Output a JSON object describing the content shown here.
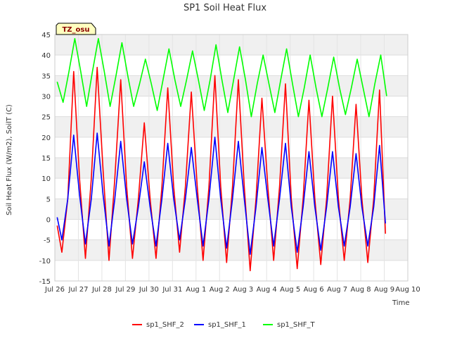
{
  "chart_data": {
    "type": "line",
    "title": "SP1 Soil Heat Flux",
    "xlabel": "Time",
    "ylabel": "Soil Heat Flux (W/m2), SoilT (C)",
    "badge": "TZ_osu",
    "xlim": [
      0,
      15
    ],
    "ylim": [
      -15,
      45
    ],
    "y_ticks": [
      -15,
      -10,
      -5,
      0,
      5,
      10,
      15,
      20,
      25,
      30,
      35,
      40,
      45
    ],
    "x_ticks": [
      {
        "x": 0,
        "label": "Jul 26"
      },
      {
        "x": 1,
        "label": "Jul 27"
      },
      {
        "x": 2,
        "label": "Jul 28"
      },
      {
        "x": 3,
        "label": "Jul 29"
      },
      {
        "x": 4,
        "label": "Jul 30"
      },
      {
        "x": 5,
        "label": "Jul 31"
      },
      {
        "x": 6,
        "label": "Aug 1"
      },
      {
        "x": 7,
        "label": "Aug 2"
      },
      {
        "x": 8,
        "label": "Aug 3"
      },
      {
        "x": 9,
        "label": "Aug 4"
      },
      {
        "x": 10,
        "label": "Aug 5"
      },
      {
        "x": 11,
        "label": "Aug 6"
      },
      {
        "x": 12,
        "label": "Aug 7"
      },
      {
        "x": 13,
        "label": "Aug 8"
      },
      {
        "x": 14,
        "label": "Aug 9"
      },
      {
        "x": 15,
        "label": "Aug 10"
      }
    ],
    "grid": true,
    "legend_position": "bottom",
    "series": [
      {
        "name": "sp1_SHF_2",
        "color": "#ff0000",
        "points": [
          [
            0.1,
            -1.5
          ],
          [
            0.3,
            -8.0
          ],
          [
            0.55,
            5.0
          ],
          [
            0.8,
            36.0
          ],
          [
            1.05,
            10.0
          ],
          [
            1.3,
            -9.5
          ],
          [
            1.55,
            10.0
          ],
          [
            1.8,
            37.0
          ],
          [
            2.05,
            12.0
          ],
          [
            2.3,
            -10.0
          ],
          [
            2.55,
            10.0
          ],
          [
            2.8,
            34.0
          ],
          [
            3.05,
            8.0
          ],
          [
            3.3,
            -9.5
          ],
          [
            3.55,
            5.0
          ],
          [
            3.8,
            23.5
          ],
          [
            4.05,
            5.0
          ],
          [
            4.3,
            -9.5
          ],
          [
            4.55,
            8.0
          ],
          [
            4.8,
            32.0
          ],
          [
            5.05,
            8.0
          ],
          [
            5.3,
            -8.0
          ],
          [
            5.55,
            8.0
          ],
          [
            5.8,
            31.0
          ],
          [
            6.05,
            8.0
          ],
          [
            6.3,
            -10.0
          ],
          [
            6.55,
            8.0
          ],
          [
            6.8,
            35.0
          ],
          [
            7.05,
            8.0
          ],
          [
            7.3,
            -10.5
          ],
          [
            7.55,
            8.0
          ],
          [
            7.8,
            34.0
          ],
          [
            8.05,
            8.0
          ],
          [
            8.3,
            -12.5
          ],
          [
            8.55,
            5.0
          ],
          [
            8.8,
            29.5
          ],
          [
            9.05,
            8.0
          ],
          [
            9.3,
            -10.0
          ],
          [
            9.55,
            8.0
          ],
          [
            9.8,
            33.0
          ],
          [
            10.05,
            5.0
          ],
          [
            10.3,
            -12.0
          ],
          [
            10.55,
            5.0
          ],
          [
            10.8,
            29.0
          ],
          [
            11.05,
            5.0
          ],
          [
            11.3,
            -11.0
          ],
          [
            11.55,
            5.0
          ],
          [
            11.8,
            30.0
          ],
          [
            12.05,
            5.0
          ],
          [
            12.3,
            -10.0
          ],
          [
            12.55,
            5.0
          ],
          [
            12.8,
            28.0
          ],
          [
            13.05,
            5.0
          ],
          [
            13.3,
            -10.5
          ],
          [
            13.55,
            5.0
          ],
          [
            13.8,
            31.5
          ],
          [
            14.05,
            -3.5
          ]
        ]
      },
      {
        "name": "sp1_SHF_1",
        "color": "#0000ff",
        "points": [
          [
            0.1,
            0.5
          ],
          [
            0.3,
            -5.0
          ],
          [
            0.55,
            5.0
          ],
          [
            0.8,
            20.5
          ],
          [
            1.05,
            6.0
          ],
          [
            1.3,
            -6.0
          ],
          [
            1.55,
            5.0
          ],
          [
            1.8,
            21.0
          ],
          [
            2.05,
            6.0
          ],
          [
            2.3,
            -6.5
          ],
          [
            2.55,
            5.0
          ],
          [
            2.8,
            19.0
          ],
          [
            3.05,
            5.0
          ],
          [
            3.3,
            -6.0
          ],
          [
            3.55,
            3.0
          ],
          [
            3.8,
            14.0
          ],
          [
            4.05,
            3.0
          ],
          [
            4.3,
            -6.5
          ],
          [
            4.55,
            5.0
          ],
          [
            4.8,
            18.5
          ],
          [
            5.05,
            5.0
          ],
          [
            5.3,
            -5.0
          ],
          [
            5.55,
            5.0
          ],
          [
            5.8,
            17.5
          ],
          [
            6.05,
            5.0
          ],
          [
            6.3,
            -6.5
          ],
          [
            6.55,
            5.0
          ],
          [
            6.8,
            20.0
          ],
          [
            7.05,
            5.0
          ],
          [
            7.3,
            -7.0
          ],
          [
            7.55,
            5.0
          ],
          [
            7.8,
            19.0
          ],
          [
            8.05,
            5.0
          ],
          [
            8.3,
            -8.5
          ],
          [
            8.55,
            3.0
          ],
          [
            8.8,
            17.5
          ],
          [
            9.05,
            5.0
          ],
          [
            9.3,
            -6.5
          ],
          [
            9.55,
            5.0
          ],
          [
            9.8,
            18.5
          ],
          [
            10.05,
            3.0
          ],
          [
            10.3,
            -8.0
          ],
          [
            10.55,
            3.0
          ],
          [
            10.8,
            16.5
          ],
          [
            11.05,
            3.0
          ],
          [
            11.3,
            -7.5
          ],
          [
            11.55,
            3.0
          ],
          [
            11.8,
            16.5
          ],
          [
            12.05,
            3.0
          ],
          [
            12.3,
            -6.5
          ],
          [
            12.55,
            3.0
          ],
          [
            12.8,
            16.0
          ],
          [
            13.05,
            3.0
          ],
          [
            13.3,
            -6.5
          ],
          [
            13.55,
            3.0
          ],
          [
            13.8,
            18.0
          ],
          [
            14.05,
            -1.0
          ]
        ]
      },
      {
        "name": "sp1_SHF_T",
        "color": "#00ff00",
        "points": [
          [
            0.1,
            33.5
          ],
          [
            0.35,
            28.5
          ],
          [
            0.6,
            36.0
          ],
          [
            0.85,
            44.0
          ],
          [
            1.1,
            36.0
          ],
          [
            1.35,
            27.5
          ],
          [
            1.6,
            36.0
          ],
          [
            1.85,
            44.0
          ],
          [
            2.1,
            36.0
          ],
          [
            2.35,
            27.5
          ],
          [
            2.6,
            35.0
          ],
          [
            2.85,
            43.0
          ],
          [
            3.1,
            35.0
          ],
          [
            3.35,
            27.5
          ],
          [
            3.6,
            33.0
          ],
          [
            3.85,
            39.0
          ],
          [
            4.1,
            33.0
          ],
          [
            4.35,
            26.5
          ],
          [
            4.6,
            34.0
          ],
          [
            4.85,
            41.5
          ],
          [
            5.1,
            34.0
          ],
          [
            5.35,
            27.5
          ],
          [
            5.6,
            34.0
          ],
          [
            5.85,
            41.0
          ],
          [
            6.1,
            34.0
          ],
          [
            6.35,
            26.5
          ],
          [
            6.6,
            34.0
          ],
          [
            6.85,
            42.5
          ],
          [
            7.1,
            34.0
          ],
          [
            7.35,
            26.0
          ],
          [
            7.6,
            34.0
          ],
          [
            7.85,
            42.0
          ],
          [
            8.1,
            34.0
          ],
          [
            8.35,
            25.0
          ],
          [
            8.6,
            33.0
          ],
          [
            8.85,
            40.0
          ],
          [
            9.1,
            33.0
          ],
          [
            9.35,
            26.0
          ],
          [
            9.6,
            34.0
          ],
          [
            9.85,
            41.5
          ],
          [
            10.1,
            33.0
          ],
          [
            10.35,
            25.0
          ],
          [
            10.6,
            32.0
          ],
          [
            10.85,
            40.0
          ],
          [
            11.1,
            32.0
          ],
          [
            11.35,
            25.0
          ],
          [
            11.6,
            32.0
          ],
          [
            11.85,
            39.5
          ],
          [
            12.1,
            32.0
          ],
          [
            12.35,
            25.5
          ],
          [
            12.6,
            32.0
          ],
          [
            12.85,
            39.0
          ],
          [
            13.1,
            32.0
          ],
          [
            13.35,
            25.0
          ],
          [
            13.6,
            33.0
          ],
          [
            13.85,
            40.0
          ],
          [
            14.1,
            30.0
          ]
        ]
      }
    ]
  }
}
